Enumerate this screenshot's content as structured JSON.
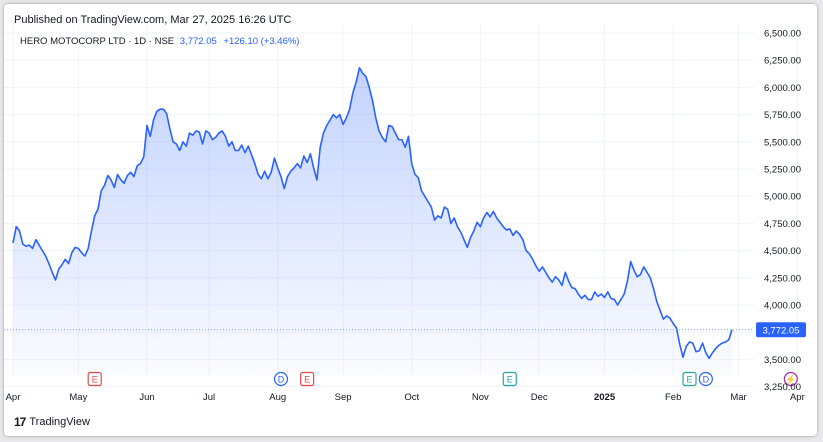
{
  "published": "Published on TradingView.com, Mar 27, 2025 16:26 UTC",
  "header": {
    "symbol": "HERO MOTOCORP LTD · 1D · NSE",
    "price": "3,772.05",
    "change": "+126.10 (+3.46%)"
  },
  "footer": {
    "logo": "17",
    "brand": "TradingView"
  },
  "colors": {
    "line": "#2962ff",
    "price_label": "#2962ff",
    "event_earnings": "#e5484d",
    "event_dividend": "#2962ff",
    "event_split": "#26a69a",
    "event_other": "#9c27b0"
  },
  "chart_data": {
    "type": "area",
    "title": "",
    "xlabel": "",
    "ylabel": "",
    "ylim": [
      3200,
      6500
    ],
    "y_ticks": [
      3250,
      3500,
      3750,
      4000,
      4250,
      4500,
      4750,
      5000,
      5250,
      5500,
      5750,
      6000,
      6250,
      6500
    ],
    "y_tick_labels": [
      "3,250.00",
      "3,500.00",
      "3,750.00",
      "4,000.00",
      "4,250.00",
      "4,500.00",
      "4,750.00",
      "5,000.00",
      "5,250.00",
      "5,500.00",
      "5,750.00",
      "6,000.00",
      "6,250.00",
      "6,500.00"
    ],
    "x_ticks": [
      {
        "label": "Apr",
        "index": 0
      },
      {
        "label": "May",
        "index": 20
      },
      {
        "label": "Jun",
        "index": 41
      },
      {
        "label": "Jul",
        "index": 60
      },
      {
        "label": "Aug",
        "index": 81
      },
      {
        "label": "Sep",
        "index": 101
      },
      {
        "label": "Oct",
        "index": 122
      },
      {
        "label": "Nov",
        "index": 143
      },
      {
        "label": "Dec",
        "index": 161
      },
      {
        "label": "2025",
        "index": 181,
        "bold": true
      },
      {
        "label": "Feb",
        "index": 202
      },
      {
        "label": "Mar",
        "index": 222
      },
      {
        "label": "Apr",
        "index": 240
      }
    ],
    "last_price": 3772.05,
    "last_price_label": "3,772.05",
    "events": [
      {
        "label": "E",
        "index": 25,
        "kind": "earnings"
      },
      {
        "label": "D",
        "index": 82,
        "kind": "dividend"
      },
      {
        "label": "E",
        "index": 90,
        "kind": "earnings"
      },
      {
        "label": "E",
        "index": 152,
        "kind": "split"
      },
      {
        "label": "E",
        "index": 207,
        "kind": "split"
      },
      {
        "label": "D",
        "index": 212,
        "kind": "dividend"
      },
      {
        "label": "⚡",
        "index": 238,
        "kind": "other"
      }
    ],
    "series": [
      {
        "values": [
          4570,
          4720,
          4680,
          4560,
          4540,
          4550,
          4520,
          4600,
          4550,
          4500,
          4450,
          4380,
          4300,
          4230,
          4330,
          4370,
          4420,
          4380,
          4480,
          4530,
          4520,
          4480,
          4450,
          4520,
          4680,
          4820,
          4880,
          5050,
          5100,
          5190,
          5150,
          5080,
          5200,
          5150,
          5120,
          5190,
          5220,
          5180,
          5280,
          5300,
          5360,
          5650,
          5550,
          5700,
          5780,
          5800,
          5800,
          5760,
          5620,
          5500,
          5480,
          5420,
          5500,
          5460,
          5580,
          5560,
          5600,
          5590,
          5480,
          5600,
          5580,
          5520,
          5540,
          5580,
          5600,
          5550,
          5460,
          5500,
          5420,
          5420,
          5470,
          5400,
          5460,
          5380,
          5300,
          5200,
          5160,
          5230,
          5160,
          5220,
          5350,
          5260,
          5180,
          5070,
          5180,
          5230,
          5260,
          5300,
          5260,
          5370,
          5310,
          5390,
          5260,
          5150,
          5450,
          5580,
          5650,
          5700,
          5750,
          5720,
          5750,
          5660,
          5720,
          5800,
          5950,
          6050,
          6180,
          6130,
          6100,
          6000,
          5880,
          5720,
          5600,
          5540,
          5500,
          5650,
          5640,
          5580,
          5520,
          5520,
          5450,
          5550,
          5300,
          5200,
          5170,
          5050,
          5000,
          4950,
          4900,
          4780,
          4820,
          4800,
          4900,
          4880,
          4750,
          4800,
          4720,
          4670,
          4600,
          4530,
          4620,
          4680,
          4760,
          4720,
          4800,
          4850,
          4810,
          4860,
          4800,
          4760,
          4720,
          4690,
          4700,
          4640,
          4680,
          4650,
          4600,
          4500,
          4470,
          4420,
          4360,
          4310,
          4350,
          4300,
          4250,
          4210,
          4260,
          4230,
          4180,
          4300,
          4220,
          4160,
          4150,
          4100,
          4060,
          4090,
          4050,
          4050,
          4120,
          4080,
          4100,
          4070,
          4120,
          4060,
          4050,
          4000,
          4050,
          4100,
          4220,
          4400,
          4320,
          4260,
          4280,
          4350,
          4300,
          4250,
          4150,
          4030,
          3950,
          3870,
          3900,
          3880,
          3830,
          3790,
          3640,
          3520,
          3620,
          3660,
          3650,
          3570,
          3580,
          3650,
          3560,
          3510,
          3560,
          3600,
          3630,
          3650,
          3660,
          3680,
          3772.05
        ]
      }
    ]
  }
}
